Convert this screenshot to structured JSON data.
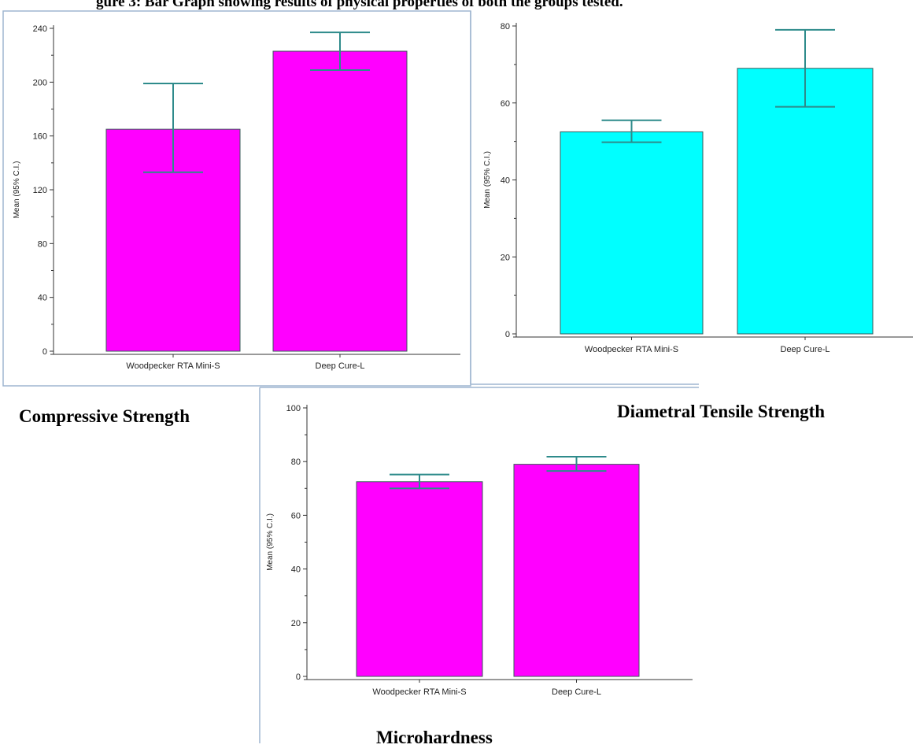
{
  "figure_caption": "gure 3:  Bar Graph showing results of physical properties of both the groups tested.",
  "chart_data": [
    {
      "type": "bar",
      "title": "Compressive Strength",
      "ylabel": "Mean (95% C.I.)",
      "xlabel": "",
      "categories": [
        "Woodpecker RTA Mini-S",
        "Deep Cure-L"
      ],
      "values": [
        165,
        223
      ],
      "error_low": [
        133,
        209
      ],
      "error_high": [
        199,
        237
      ],
      "ylim": [
        0,
        240
      ],
      "yticks": [
        0,
        40,
        80,
        120,
        160,
        200,
        240
      ],
      "bar_color": "#ff00ff",
      "error_color": "#2e8b8b",
      "grid": false,
      "legend": "none"
    },
    {
      "type": "bar",
      "title": "Diametral Tensile Strength",
      "ylabel": "Mean (95% C.I.)",
      "xlabel": "",
      "categories": [
        "Woodpecker RTA Mini-S",
        "Deep Cure-L"
      ],
      "values": [
        52.5,
        69
      ],
      "error_low": [
        49.8,
        59
      ],
      "error_high": [
        55.5,
        79
      ],
      "ylim": [
        0,
        80
      ],
      "yticks": [
        0,
        20,
        40,
        60,
        80
      ],
      "bar_color": "#00ffff",
      "error_color": "#2e8b8b",
      "grid": false,
      "legend": "none"
    },
    {
      "type": "bar",
      "title": "Microhardness",
      "ylabel": "Mean (95% C.I.)",
      "xlabel": "",
      "categories": [
        "Woodpecker RTA Mini-S",
        "Deep Cure-L"
      ],
      "values": [
        72.5,
        79
      ],
      "error_low": [
        70,
        76.5
      ],
      "error_high": [
        75.2,
        81.8
      ],
      "ylim": [
        0,
        100
      ],
      "yticks": [
        0,
        20,
        40,
        60,
        80,
        100
      ],
      "bar_color": "#ff00ff",
      "error_color": "#2e8b8b",
      "grid": false,
      "legend": "none"
    }
  ]
}
